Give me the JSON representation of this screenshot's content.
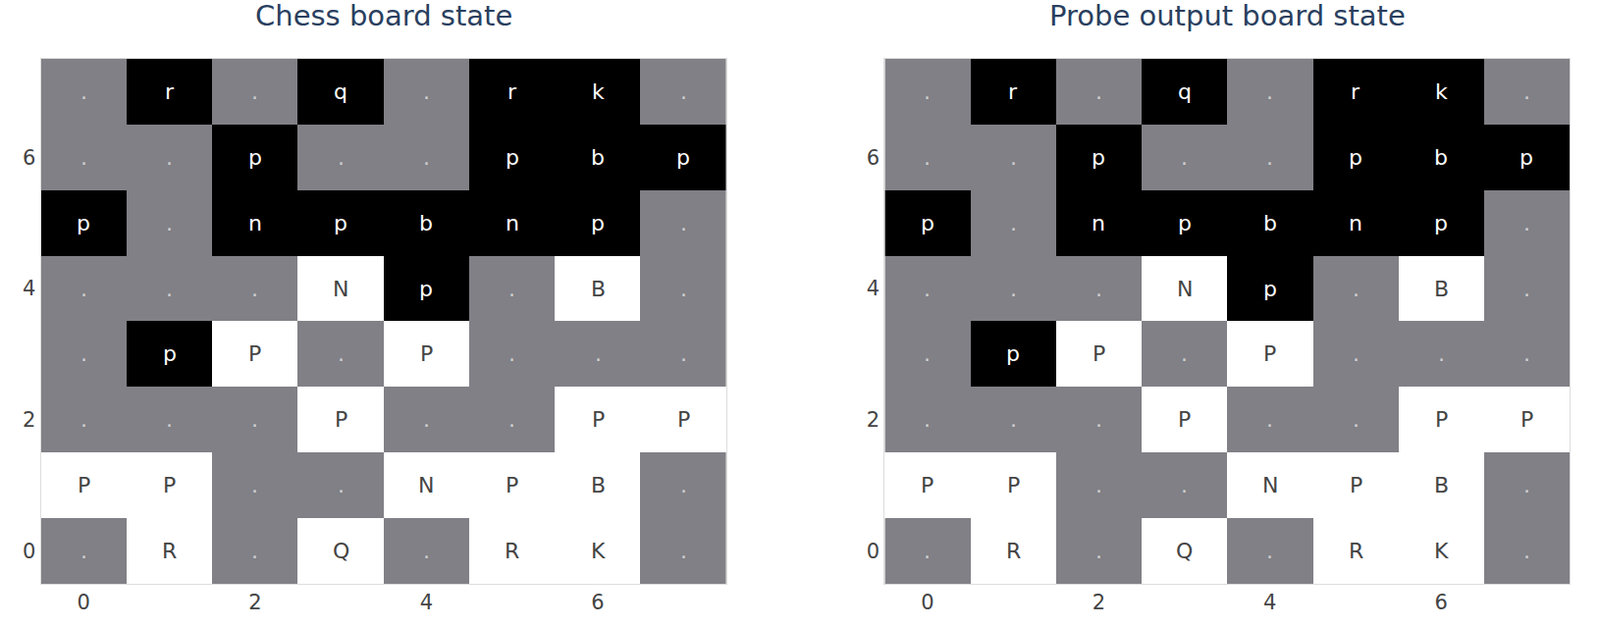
{
  "chart_data": [
    {
      "type": "heatmap",
      "title": "Chess board state",
      "xlim": [
        -0.5,
        7.5
      ],
      "ylim": [
        -0.5,
        7.5
      ],
      "xticks": [
        0,
        2,
        4,
        6
      ],
      "yticks": [
        0,
        2,
        4,
        6
      ],
      "grid": false,
      "cells": [
        [
          ".",
          "R",
          ".",
          "Q",
          ".",
          "R",
          "K",
          "."
        ],
        [
          "P",
          "P",
          ".",
          ".",
          "N",
          "P",
          "B",
          "."
        ],
        [
          ".",
          ".",
          ".",
          "P",
          ".",
          ".",
          "P",
          "P"
        ],
        [
          ".",
          "p",
          "P",
          ".",
          "P",
          ".",
          ".",
          "."
        ],
        [
          ".",
          ".",
          ".",
          "N",
          "p",
          ".",
          "B",
          "."
        ],
        [
          "p",
          ".",
          "n",
          "p",
          "b",
          "n",
          "p",
          "."
        ],
        [
          ".",
          ".",
          "p",
          ".",
          ".",
          "p",
          "b",
          "p"
        ],
        [
          ".",
          "r",
          ".",
          "q",
          ".",
          "r",
          "k",
          "."
        ]
      ]
    },
    {
      "type": "heatmap",
      "title": "Probe output board state",
      "xlim": [
        -0.5,
        7.5
      ],
      "ylim": [
        -0.5,
        7.5
      ],
      "xticks": [
        0,
        2,
        4,
        6
      ],
      "yticks": [
        0,
        2,
        4,
        6
      ],
      "grid": false,
      "cells": [
        [
          ".",
          "R",
          ".",
          "Q",
          ".",
          "R",
          "K",
          "."
        ],
        [
          "P",
          "P",
          ".",
          ".",
          "N",
          "P",
          "B",
          "."
        ],
        [
          ".",
          ".",
          ".",
          "P",
          ".",
          ".",
          "P",
          "P"
        ],
        [
          ".",
          "p",
          "P",
          ".",
          "P",
          ".",
          ".",
          "."
        ],
        [
          ".",
          ".",
          ".",
          "N",
          "p",
          ".",
          "B",
          "."
        ],
        [
          "p",
          ".",
          "n",
          "p",
          "b",
          "n",
          "p",
          "."
        ],
        [
          ".",
          ".",
          "p",
          ".",
          ".",
          "p",
          "b",
          "p"
        ],
        [
          ".",
          "r",
          ".",
          "q",
          ".",
          "r",
          "k",
          "."
        ]
      ]
    }
  ]
}
